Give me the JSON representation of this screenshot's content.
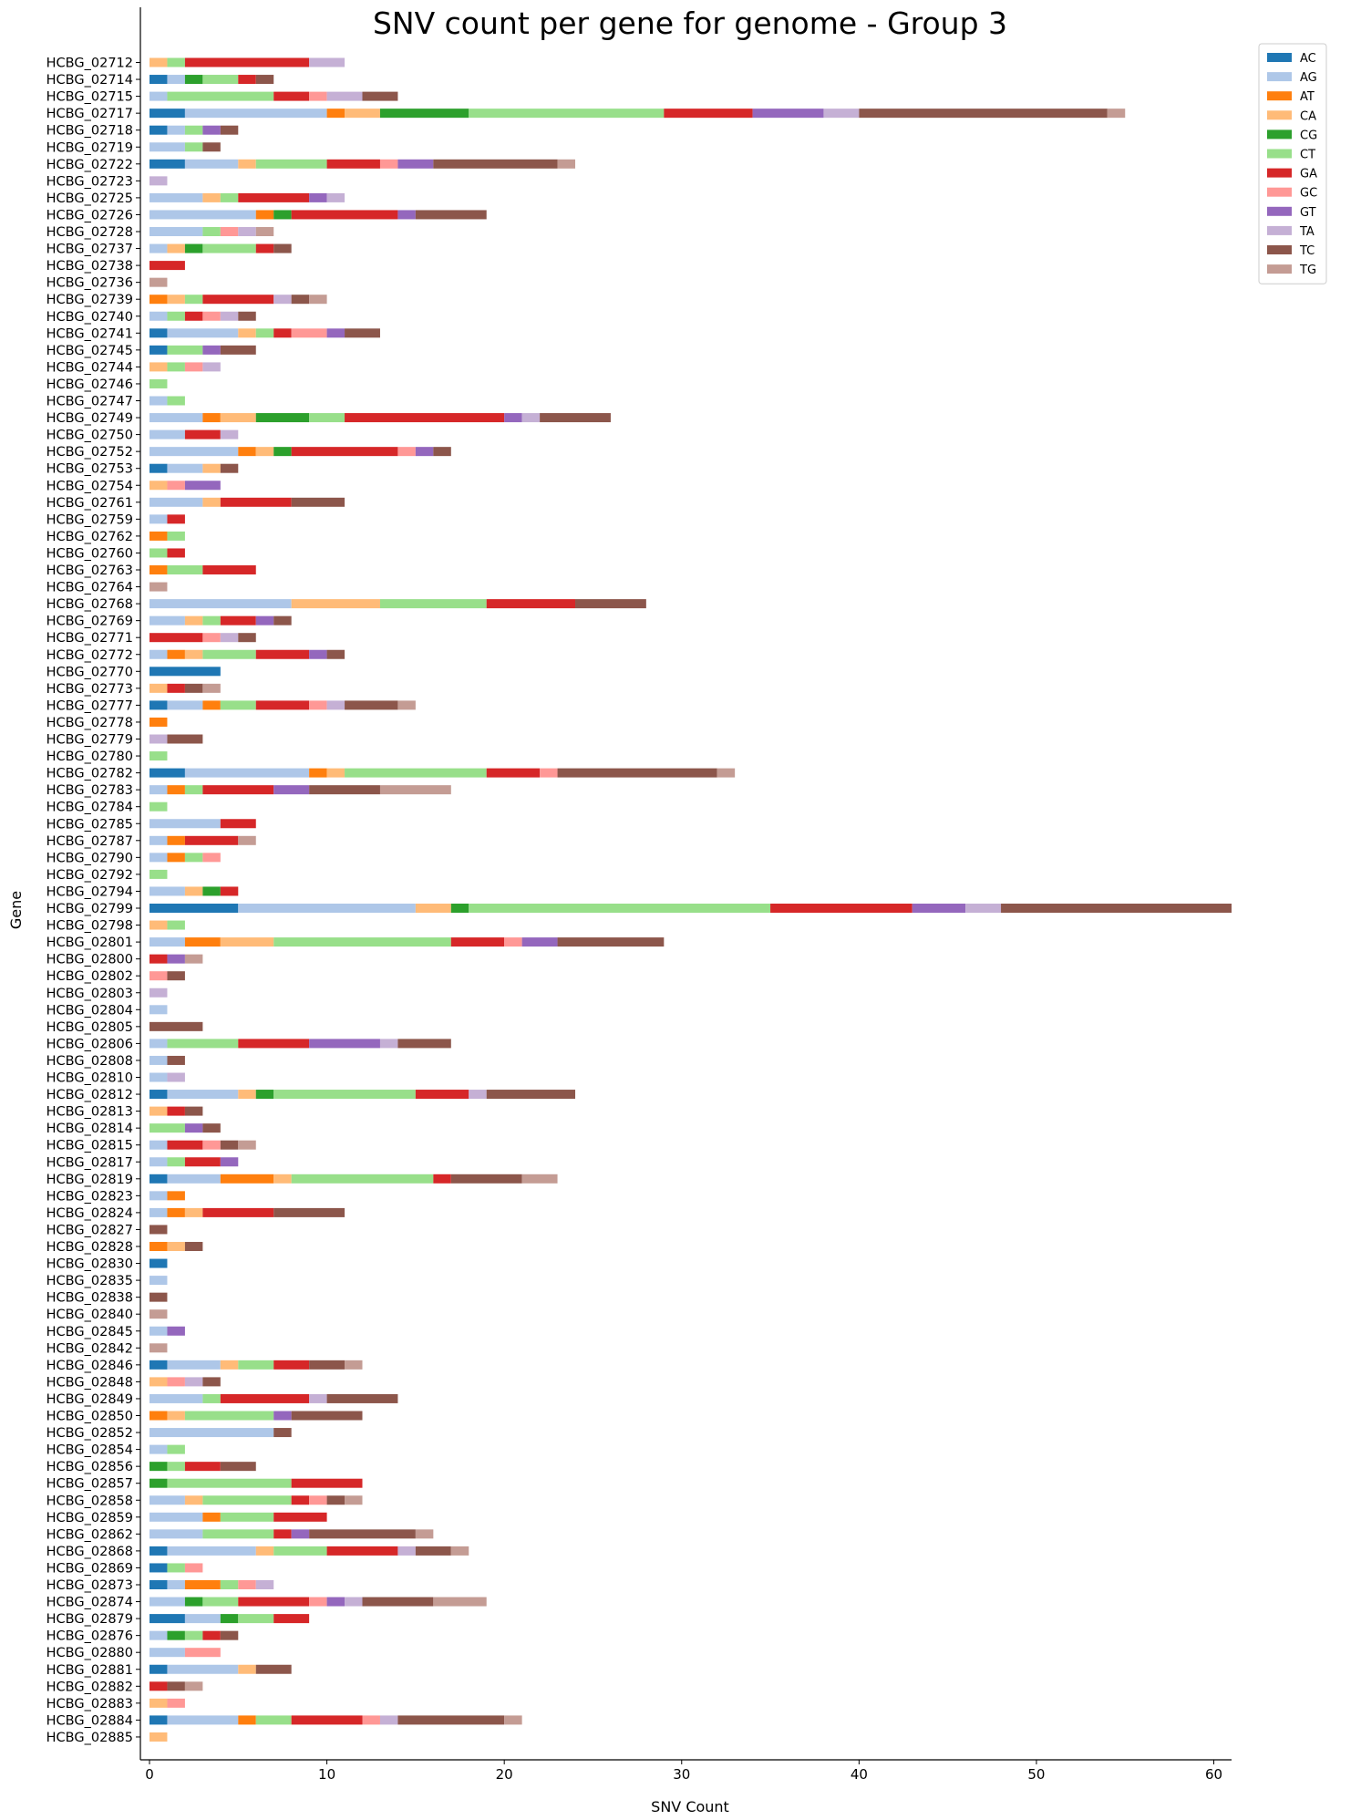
{
  "chart_data": {
    "type": "bar",
    "orientation": "horizontal",
    "stacked": true,
    "title": "SNV count per gene for genome - Group 3",
    "xlabel": "SNV Count",
    "ylabel": "Gene",
    "xlim": [
      0,
      61
    ],
    "xticks": [
      "0",
      "10",
      "20",
      "30",
      "40",
      "50",
      "60"
    ],
    "grid": false,
    "legend_position": "top-right, outside plot",
    "categories": [
      "HCBG_02712",
      "HCBG_02714",
      "HCBG_02715",
      "HCBG_02717",
      "HCBG_02718",
      "HCBG_02719",
      "HCBG_02722",
      "HCBG_02723",
      "HCBG_02725",
      "HCBG_02726",
      "HCBG_02728",
      "HCBG_02737",
      "HCBG_02738",
      "HCBG_02736",
      "HCBG_02739",
      "HCBG_02740",
      "HCBG_02741",
      "HCBG_02745",
      "HCBG_02744",
      "HCBG_02746",
      "HCBG_02747",
      "HCBG_02749",
      "HCBG_02750",
      "HCBG_02752",
      "HCBG_02753",
      "HCBG_02754",
      "HCBG_02761",
      "HCBG_02759",
      "HCBG_02762",
      "HCBG_02760",
      "HCBG_02763",
      "HCBG_02764",
      "HCBG_02768",
      "HCBG_02769",
      "HCBG_02771",
      "HCBG_02772",
      "HCBG_02770",
      "HCBG_02773",
      "HCBG_02777",
      "HCBG_02778",
      "HCBG_02779",
      "HCBG_02780",
      "HCBG_02782",
      "HCBG_02783",
      "HCBG_02784",
      "HCBG_02785",
      "HCBG_02787",
      "HCBG_02790",
      "HCBG_02792",
      "HCBG_02794",
      "HCBG_02799",
      "HCBG_02798",
      "HCBG_02801",
      "HCBG_02800",
      "HCBG_02802",
      "HCBG_02803",
      "HCBG_02804",
      "HCBG_02805",
      "HCBG_02806",
      "HCBG_02808",
      "HCBG_02810",
      "HCBG_02812",
      "HCBG_02813",
      "HCBG_02814",
      "HCBG_02815",
      "HCBG_02817",
      "HCBG_02819",
      "HCBG_02823",
      "HCBG_02824",
      "HCBG_02827",
      "HCBG_02828",
      "HCBG_02830",
      "HCBG_02835",
      "HCBG_02838",
      "HCBG_02840",
      "HCBG_02845",
      "HCBG_02842",
      "HCBG_02846",
      "HCBG_02848",
      "HCBG_02849",
      "HCBG_02850",
      "HCBG_02852",
      "HCBG_02854",
      "HCBG_02856",
      "HCBG_02857",
      "HCBG_02858",
      "HCBG_02859",
      "HCBG_02862",
      "HCBG_02868",
      "HCBG_02869",
      "HCBG_02873",
      "HCBG_02874",
      "HCBG_02879",
      "HCBG_02876",
      "HCBG_02880",
      "HCBG_02881",
      "HCBG_02882",
      "HCBG_02883",
      "HCBG_02884",
      "HCBG_02885"
    ],
    "series": [
      {
        "name": "AC",
        "color": "#1f77b4",
        "values": [
          0,
          1,
          0,
          2,
          1,
          0,
          2,
          0,
          0,
          0,
          0,
          0,
          0,
          0,
          0,
          0,
          1,
          1,
          0,
          0,
          0,
          0,
          0,
          0,
          1,
          0,
          0,
          0,
          0,
          0,
          0,
          0,
          0,
          0,
          0,
          0,
          4,
          0,
          1,
          0,
          0,
          0,
          2,
          0,
          0,
          0,
          0,
          0,
          0,
          0,
          5,
          0,
          0,
          0,
          0,
          0,
          0,
          0,
          0,
          0,
          0,
          1,
          0,
          0,
          0,
          0,
          1,
          0,
          0,
          0,
          0,
          1,
          0,
          0,
          0,
          0,
          0,
          1,
          0,
          0,
          0,
          0,
          0,
          0,
          0,
          0,
          0,
          0,
          1,
          1,
          1,
          0,
          2,
          0,
          0,
          1,
          0,
          0,
          1,
          0
        ]
      },
      {
        "name": "AG",
        "color": "#aec7e8",
        "values": [
          0,
          1,
          1,
          8,
          1,
          2,
          3,
          0,
          3,
          6,
          3,
          1,
          0,
          0,
          0,
          1,
          4,
          0,
          0,
          0,
          1,
          3,
          2,
          5,
          2,
          0,
          3,
          1,
          0,
          0,
          0,
          0,
          8,
          2,
          0,
          1,
          0,
          0,
          2,
          0,
          0,
          0,
          7,
          1,
          0,
          4,
          1,
          1,
          0,
          2,
          10,
          0,
          2,
          0,
          0,
          0,
          1,
          0,
          1,
          1,
          1,
          4,
          0,
          0,
          1,
          1,
          3,
          1,
          1,
          0,
          0,
          0,
          1,
          0,
          0,
          1,
          0,
          3,
          0,
          3,
          0,
          7,
          1,
          0,
          0,
          2,
          3,
          3,
          5,
          0,
          1,
          2,
          2,
          1,
          2,
          4,
          0,
          0,
          4,
          0
        ]
      },
      {
        "name": "AT",
        "color": "#ff7f0e",
        "values": [
          0,
          0,
          0,
          1,
          0,
          0,
          0,
          0,
          0,
          1,
          0,
          0,
          0,
          0,
          1,
          0,
          0,
          0,
          0,
          0,
          0,
          1,
          0,
          1,
          0,
          0,
          0,
          0,
          1,
          0,
          1,
          0,
          0,
          0,
          0,
          1,
          0,
          0,
          1,
          1,
          0,
          0,
          1,
          1,
          0,
          0,
          1,
          1,
          0,
          0,
          0,
          0,
          2,
          0,
          0,
          0,
          0,
          0,
          0,
          0,
          0,
          0,
          0,
          0,
          0,
          0,
          3,
          1,
          1,
          0,
          1,
          0,
          0,
          0,
          0,
          0,
          0,
          0,
          0,
          0,
          1,
          0,
          0,
          0,
          0,
          0,
          1,
          0,
          0,
          0,
          2,
          0,
          0,
          0,
          0,
          0,
          0,
          0,
          1,
          0
        ]
      },
      {
        "name": "CA",
        "color": "#ffbb78",
        "values": [
          1,
          0,
          0,
          2,
          0,
          0,
          1,
          0,
          1,
          0,
          0,
          1,
          0,
          0,
          1,
          0,
          1,
          0,
          1,
          0,
          0,
          2,
          0,
          1,
          1,
          1,
          1,
          0,
          0,
          0,
          0,
          0,
          5,
          1,
          0,
          1,
          0,
          1,
          0,
          0,
          0,
          0,
          1,
          0,
          0,
          0,
          0,
          0,
          0,
          1,
          2,
          1,
          3,
          0,
          0,
          0,
          0,
          0,
          0,
          0,
          0,
          1,
          1,
          0,
          0,
          0,
          1,
          0,
          1,
          0,
          1,
          0,
          0,
          0,
          0,
          0,
          0,
          1,
          1,
          0,
          1,
          0,
          0,
          0,
          0,
          1,
          0,
          0,
          1,
          0,
          0,
          0,
          0,
          0,
          0,
          1,
          0,
          1,
          0,
          1
        ]
      },
      {
        "name": "CG",
        "color": "#2ca02c",
        "values": [
          0,
          1,
          0,
          5,
          0,
          0,
          0,
          0,
          0,
          1,
          0,
          1,
          0,
          0,
          0,
          0,
          0,
          0,
          0,
          0,
          0,
          3,
          0,
          1,
          0,
          0,
          0,
          0,
          0,
          0,
          0,
          0,
          0,
          0,
          0,
          0,
          0,
          0,
          0,
          0,
          0,
          0,
          0,
          0,
          0,
          0,
          0,
          0,
          0,
          1,
          1,
          0,
          0,
          0,
          0,
          0,
          0,
          0,
          0,
          0,
          0,
          1,
          0,
          0,
          0,
          0,
          0,
          0,
          0,
          0,
          0,
          0,
          0,
          0,
          0,
          0,
          0,
          0,
          0,
          0,
          0,
          0,
          0,
          1,
          1,
          0,
          0,
          0,
          0,
          0,
          0,
          1,
          1,
          1,
          0,
          0,
          0,
          0,
          0,
          0
        ]
      },
      {
        "name": "CT",
        "color": "#98df8a",
        "values": [
          1,
          2,
          6,
          11,
          1,
          1,
          4,
          0,
          1,
          0,
          1,
          3,
          0,
          0,
          1,
          1,
          1,
          2,
          1,
          1,
          1,
          2,
          0,
          0,
          0,
          0,
          0,
          0,
          1,
          1,
          2,
          0,
          6,
          1,
          0,
          3,
          0,
          0,
          2,
          0,
          0,
          1,
          8,
          1,
          1,
          0,
          0,
          1,
          1,
          0,
          17,
          1,
          10,
          0,
          0,
          0,
          0,
          0,
          4,
          0,
          0,
          8,
          0,
          2,
          0,
          1,
          8,
          0,
          0,
          0,
          0,
          0,
          0,
          0,
          0,
          0,
          0,
          2,
          0,
          1,
          5,
          0,
          1,
          1,
          7,
          5,
          3,
          4,
          3,
          1,
          1,
          2,
          2,
          1,
          0,
          0,
          0,
          0,
          2,
          0
        ]
      },
      {
        "name": "GA",
        "color": "#d62728",
        "values": [
          7,
          1,
          2,
          5,
          0,
          0,
          3,
          0,
          4,
          6,
          0,
          1,
          2,
          0,
          4,
          1,
          1,
          0,
          0,
          0,
          0,
          9,
          2,
          6,
          0,
          0,
          4,
          1,
          0,
          1,
          3,
          0,
          5,
          2,
          3,
          3,
          0,
          1,
          3,
          0,
          0,
          0,
          3,
          4,
          0,
          2,
          3,
          0,
          0,
          1,
          8,
          0,
          3,
          1,
          0,
          0,
          0,
          0,
          4,
          0,
          0,
          3,
          1,
          0,
          2,
          2,
          1,
          0,
          4,
          0,
          0,
          0,
          0,
          0,
          0,
          0,
          0,
          2,
          0,
          5,
          0,
          0,
          0,
          2,
          4,
          1,
          3,
          1,
          4,
          0,
          0,
          4,
          2,
          1,
          0,
          0,
          1,
          0,
          4,
          0
        ]
      },
      {
        "name": "GC",
        "color": "#ff9896",
        "values": [
          0,
          0,
          1,
          0,
          0,
          0,
          1,
          0,
          0,
          0,
          1,
          0,
          0,
          0,
          0,
          1,
          2,
          0,
          1,
          0,
          0,
          0,
          0,
          1,
          0,
          1,
          0,
          0,
          0,
          0,
          0,
          0,
          0,
          0,
          1,
          0,
          0,
          0,
          1,
          0,
          0,
          0,
          1,
          0,
          0,
          0,
          0,
          1,
          0,
          0,
          0,
          0,
          1,
          0,
          1,
          0,
          0,
          0,
          0,
          0,
          0,
          0,
          0,
          0,
          1,
          0,
          0,
          0,
          0,
          0,
          0,
          0,
          0,
          0,
          0,
          0,
          0,
          0,
          1,
          0,
          0,
          0,
          0,
          0,
          0,
          1,
          0,
          0,
          0,
          1,
          1,
          1,
          0,
          0,
          2,
          0,
          0,
          1,
          1,
          0
        ]
      },
      {
        "name": "GT",
        "color": "#9467bd",
        "values": [
          0,
          0,
          0,
          4,
          1,
          0,
          2,
          0,
          1,
          1,
          0,
          0,
          0,
          0,
          0,
          0,
          1,
          1,
          0,
          0,
          0,
          1,
          0,
          1,
          0,
          2,
          0,
          0,
          0,
          0,
          0,
          0,
          0,
          1,
          0,
          1,
          0,
          0,
          0,
          0,
          0,
          0,
          0,
          2,
          0,
          0,
          0,
          0,
          0,
          0,
          3,
          0,
          2,
          1,
          0,
          0,
          0,
          0,
          4,
          0,
          0,
          0,
          0,
          1,
          0,
          1,
          0,
          0,
          0,
          0,
          0,
          0,
          0,
          0,
          0,
          1,
          0,
          0,
          0,
          0,
          1,
          0,
          0,
          0,
          0,
          0,
          0,
          1,
          0,
          0,
          0,
          1,
          0,
          0,
          0,
          0,
          0,
          0,
          0,
          0
        ]
      },
      {
        "name": "TA",
        "color": "#c5b0d5",
        "values": [
          2,
          0,
          2,
          2,
          0,
          0,
          0,
          1,
          1,
          0,
          1,
          0,
          0,
          0,
          1,
          1,
          0,
          0,
          1,
          0,
          0,
          1,
          1,
          0,
          0,
          0,
          0,
          0,
          0,
          0,
          0,
          0,
          0,
          0,
          1,
          0,
          0,
          0,
          1,
          0,
          1,
          0,
          0,
          0,
          0,
          0,
          0,
          0,
          0,
          0,
          2,
          0,
          0,
          0,
          0,
          1,
          0,
          0,
          1,
          0,
          1,
          1,
          0,
          0,
          0,
          0,
          0,
          0,
          0,
          0,
          0,
          0,
          0,
          0,
          0,
          0,
          0,
          0,
          1,
          1,
          0,
          0,
          0,
          0,
          0,
          0,
          0,
          0,
          1,
          0,
          1,
          1,
          0,
          0,
          0,
          0,
          0,
          0,
          1,
          0
        ]
      },
      {
        "name": "TC",
        "color": "#8c564b",
        "values": [
          0,
          1,
          2,
          14,
          1,
          1,
          7,
          0,
          0,
          4,
          0,
          1,
          0,
          0,
          1,
          1,
          2,
          2,
          0,
          0,
          0,
          4,
          0,
          1,
          1,
          0,
          3,
          0,
          0,
          0,
          0,
          0,
          4,
          1,
          1,
          1,
          0,
          1,
          3,
          0,
          2,
          0,
          9,
          4,
          0,
          0,
          0,
          0,
          0,
          0,
          13,
          0,
          6,
          0,
          1,
          0,
          0,
          3,
          3,
          1,
          0,
          5,
          1,
          1,
          1,
          0,
          4,
          0,
          4,
          1,
          1,
          0,
          0,
          1,
          0,
          0,
          0,
          2,
          1,
          4,
          4,
          1,
          0,
          2,
          0,
          1,
          0,
          6,
          2,
          0,
          0,
          4,
          0,
          1,
          0,
          2,
          1,
          0,
          6,
          0
        ]
      },
      {
        "name": "TG",
        "color": "#c49c94",
        "values": [
          0,
          0,
          0,
          1,
          0,
          0,
          1,
          0,
          0,
          0,
          1,
          0,
          0,
          1,
          1,
          0,
          0,
          0,
          0,
          0,
          0,
          0,
          0,
          0,
          0,
          0,
          0,
          0,
          0,
          0,
          0,
          1,
          0,
          0,
          0,
          0,
          0,
          1,
          1,
          0,
          0,
          0,
          1,
          4,
          0,
          0,
          1,
          0,
          0,
          0,
          0,
          0,
          0,
          1,
          0,
          0,
          0,
          0,
          0,
          0,
          0,
          0,
          0,
          0,
          1,
          0,
          2,
          0,
          0,
          0,
          0,
          0,
          0,
          0,
          1,
          0,
          1,
          1,
          0,
          0,
          0,
          0,
          0,
          0,
          0,
          1,
          0,
          1,
          1,
          0,
          0,
          3,
          0,
          0,
          0,
          0,
          1,
          0,
          1,
          0
        ]
      }
    ]
  }
}
